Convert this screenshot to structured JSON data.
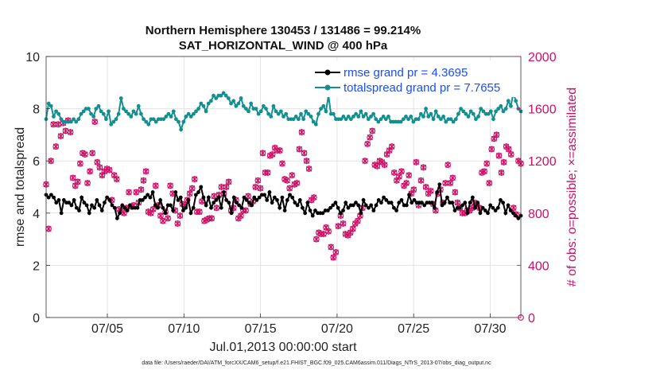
{
  "chart_data": {
    "type": "line",
    "title_line1": "Northern Hemisphere 130453 / 131486 = 99.214%",
    "title_line2": "SAT_HORIZONTAL_WIND @ 400 hPa",
    "xlabel": "Jul.01,2013 00:00:00 start",
    "ylabel_left": "rmse and totalspread",
    "ylabel_right": "# of obs: o=possible; ×=assimilated",
    "xlim": [
      1,
      32
    ],
    "ylim_left": [
      0,
      10
    ],
    "ylim_right": [
      0,
      2000
    ],
    "x_ticks": [
      5,
      10,
      15,
      20,
      25,
      30
    ],
    "x_tick_labels": [
      "07/05",
      "07/10",
      "07/15",
      "07/20",
      "07/25",
      "07/30"
    ],
    "y_left_ticks": [
      0,
      2,
      4,
      6,
      8,
      10
    ],
    "y_left_tick_labels": [
      "0",
      "2",
      "4",
      "6",
      "8",
      "10"
    ],
    "y_right_ticks": [
      0,
      400,
      800,
      1200,
      1600,
      2000
    ],
    "y_right_tick_labels": [
      "0",
      "400",
      "800",
      "1200",
      "1600",
      "2000"
    ],
    "grid": true,
    "legend_position": "top-right",
    "footnote": "data file: /Users/raeder/DAI/ATM_forcXX/CAM6_setup/f.e21.FHIST_BGC.f09_025.CAM6assim.011/Diags_NTrS_2013-07/obs_diag_output.nc",
    "colors": {
      "rmse": "#000000",
      "spread": "#148f8f",
      "obs": "#cc1166",
      "legend_text": "#1a4dff"
    },
    "series": [
      {
        "name": "rmse grand pr = 4.3695",
        "axis": "left",
        "values": [
          4.7,
          4.6,
          4.7,
          4.6,
          4.4,
          4.5,
          4.0,
          4.5,
          4.4,
          4.4,
          4.3,
          4.5,
          4.2,
          4.1,
          4.6,
          4.4,
          4.3,
          4.0,
          4.3,
          4.2,
          4.5,
          4.3,
          4.1,
          4.4,
          4.6,
          4.5,
          4.3,
          4.2,
          3.8,
          4.0,
          4.3,
          4.2,
          4.1,
          4.3,
          4.2,
          4.2,
          4.2,
          4.5,
          4.5,
          4.6,
          4.7,
          4.6,
          4.8,
          4.3,
          4.2,
          4.5,
          4.2,
          4.0,
          4.3,
          4.3,
          4.1,
          4.8,
          4.5,
          4.6,
          4.1,
          4.2,
          4.5,
          4.0,
          4.2,
          4.7,
          4.8,
          5.0,
          4.6,
          4.3,
          4.6,
          4.2,
          4.4,
          4.5,
          4.6,
          4.2,
          4.8,
          4.5,
          4.4,
          4.0,
          4.6,
          4.4,
          4.3,
          4.2,
          4.6,
          4.5,
          4.4,
          4.3,
          4.6,
          4.5,
          4.6,
          4.7,
          4.7,
          4.5,
          4.8,
          4.4,
          4.6,
          4.5,
          4.2,
          4.6,
          4.1,
          4.5,
          4.7,
          4.6,
          4.4,
          4.3,
          4.5,
          4.2,
          4.0,
          4.4,
          4.1,
          3.9,
          4.1,
          4.0,
          4.0,
          4.0,
          4.1,
          4.1,
          4.2,
          4.3,
          4.4,
          4.2,
          4.0,
          4.1,
          4.4,
          4.2,
          4.3,
          4.3,
          4.4,
          4.3,
          4.0,
          4.5,
          4.3,
          4.2,
          4.3,
          4.1,
          4.3,
          4.5,
          4.4,
          4.6,
          4.5,
          4.4,
          4.4,
          4.2,
          4.1,
          4.4,
          4.5,
          4.3,
          4.3,
          4.7,
          4.4,
          4.5,
          4.4,
          4.4,
          4.4,
          4.3,
          4.4,
          4.4,
          4.4,
          4.2,
          4.8,
          5.1,
          4.3,
          4.4,
          4.6,
          4.4,
          4.4,
          4.1,
          4.2,
          4.2,
          4.3,
          4.4,
          4.0,
          4.4,
          4.6,
          4.2,
          4.4,
          4.0,
          4.2,
          4.1,
          4.0,
          4.3,
          4.2,
          4.1,
          4.2,
          4.5,
          4.4,
          4.0,
          4.3,
          4.1,
          4.0,
          3.9,
          3.8,
          3.9
        ]
      },
      {
        "name": "totalspread grand pr = 7.7655",
        "axis": "left",
        "values": [
          7.6,
          8.2,
          8.1,
          7.7,
          7.9,
          7.8,
          7.6,
          7.5,
          7.5,
          7.5,
          7.5,
          7.6,
          7.5,
          7.6,
          7.8,
          7.9,
          8.0,
          8.0,
          7.8,
          7.7,
          8.0,
          8.1,
          7.9,
          7.8,
          7.6,
          7.9,
          7.4,
          7.5,
          7.6,
          7.8,
          8.4,
          8.0,
          7.9,
          7.8,
          7.7,
          7.9,
          7.8,
          8.1,
          7.8,
          7.6,
          7.5,
          7.4,
          7.6,
          7.6,
          7.5,
          7.6,
          7.6,
          7.6,
          7.7,
          7.8,
          7.7,
          7.9,
          7.6,
          7.5,
          7.2,
          7.5,
          7.7,
          7.8,
          7.7,
          7.8,
          7.9,
          8.0,
          8.2,
          8.1,
          7.9,
          8.2,
          8.3,
          8.5,
          8.4,
          8.5,
          8.5,
          8.6,
          8.5,
          8.4,
          8.2,
          8.3,
          8.1,
          8.2,
          8.4,
          8.1,
          8.0,
          7.9,
          8.2,
          8.0,
          8.0,
          7.8,
          7.9,
          8.1,
          8.0,
          7.8,
          7.7,
          8.1,
          7.9,
          7.8,
          7.9,
          7.7,
          7.8,
          7.6,
          7.6,
          7.6,
          7.7,
          7.6,
          7.8,
          7.6,
          7.9,
          7.8,
          7.7,
          7.5,
          7.4,
          7.8,
          8.0,
          8.1,
          7.9,
          8.5,
          7.8,
          7.8,
          7.6,
          7.6,
          7.6,
          7.7,
          7.6,
          7.7,
          7.6,
          7.7,
          7.8,
          7.7,
          7.9,
          7.7,
          7.8,
          7.6,
          7.7,
          7.8,
          7.6,
          7.5,
          7.6,
          7.7,
          7.6,
          7.7,
          7.5,
          7.5,
          7.5,
          7.5,
          7.5,
          7.6,
          7.7,
          7.6,
          7.7,
          7.5,
          7.6,
          7.6,
          7.8,
          7.7,
          8.0,
          7.7,
          7.8,
          7.6,
          7.9,
          7.7,
          7.6,
          7.7,
          7.5,
          7.6,
          7.6,
          7.5,
          7.6,
          7.8,
          8.0,
          7.9,
          7.8,
          7.7,
          7.9,
          7.8,
          7.6,
          7.7,
          8.0,
          7.9,
          7.8,
          7.8,
          7.9,
          7.6,
          7.9,
          8.0,
          8.1,
          7.9,
          8.0,
          8.3,
          8.1,
          8.6,
          8.3,
          8.0,
          7.9
        ]
      },
      {
        "name": "obs possible / assimilated",
        "axis": "right",
        "values": [
          1020,
          680,
          1200,
          1480,
          1310,
          1480,
          1390,
          1490,
          1430,
          1510,
          1420,
          1070,
          1010,
          1040,
          1180,
          1260,
          1250,
          1030,
          1120,
          1260,
          1500,
          1190,
          1150,
          1090,
          1120,
          1140,
          1130,
          900,
          1090,
          1060,
          830,
          820,
          800,
          840,
          960,
          850,
          860,
          960,
          880,
          980,
          1050,
          1120,
          810,
          800,
          830,
          1010,
          860,
          780,
          740,
          810,
          760,
          1010,
          950,
          820,
          720,
          780,
          870,
          860,
          900,
          950,
          990,
          1060,
          810,
          810,
          890,
          740,
          750,
          760,
          760,
          930,
          840,
          940,
          1000,
          950,
          1000,
          1040,
          820,
          840,
          900,
          760,
          780,
          820,
          820,
          930,
          870,
          890,
          1000,
          1050,
          990,
          1260,
          1110,
          1110,
          1240,
          1250,
          1300,
          1280,
          1280,
          1180,
          1060,
          1050,
          990,
          1090,
          1020,
          1030,
          1290,
          1420,
          1260,
          1200,
          1140,
          900,
          920,
          600,
          650,
          640,
          640,
          690,
          660,
          540,
          460,
          500,
          700,
          780,
          720,
          640,
          630,
          650,
          680,
          720,
          740,
          780,
          840,
          1200,
          1330,
          1380,
          1430,
          1170,
          1160,
          1200,
          1190,
          1170,
          1250,
          1280,
          1310,
          1110,
          1050,
          1080,
          1120,
          1010,
          1030,
          1090,
          950,
          980,
          1190,
          860,
          1050,
          1150,
          1000,
          950,
          970,
          870,
          820,
          950,
          980,
          880,
          1030,
          1170,
          1030,
          1070,
          960,
          880,
          840,
          800,
          800,
          820,
          820,
          840,
          880,
          860,
          840,
          1110,
          1120,
          1180,
          1030,
          1290,
          1370,
          1400,
          1240,
          1110,
          1190,
          1310,
          1290,
          1250,
          840,
          790,
          1200,
          1180
        ]
      }
    ]
  }
}
